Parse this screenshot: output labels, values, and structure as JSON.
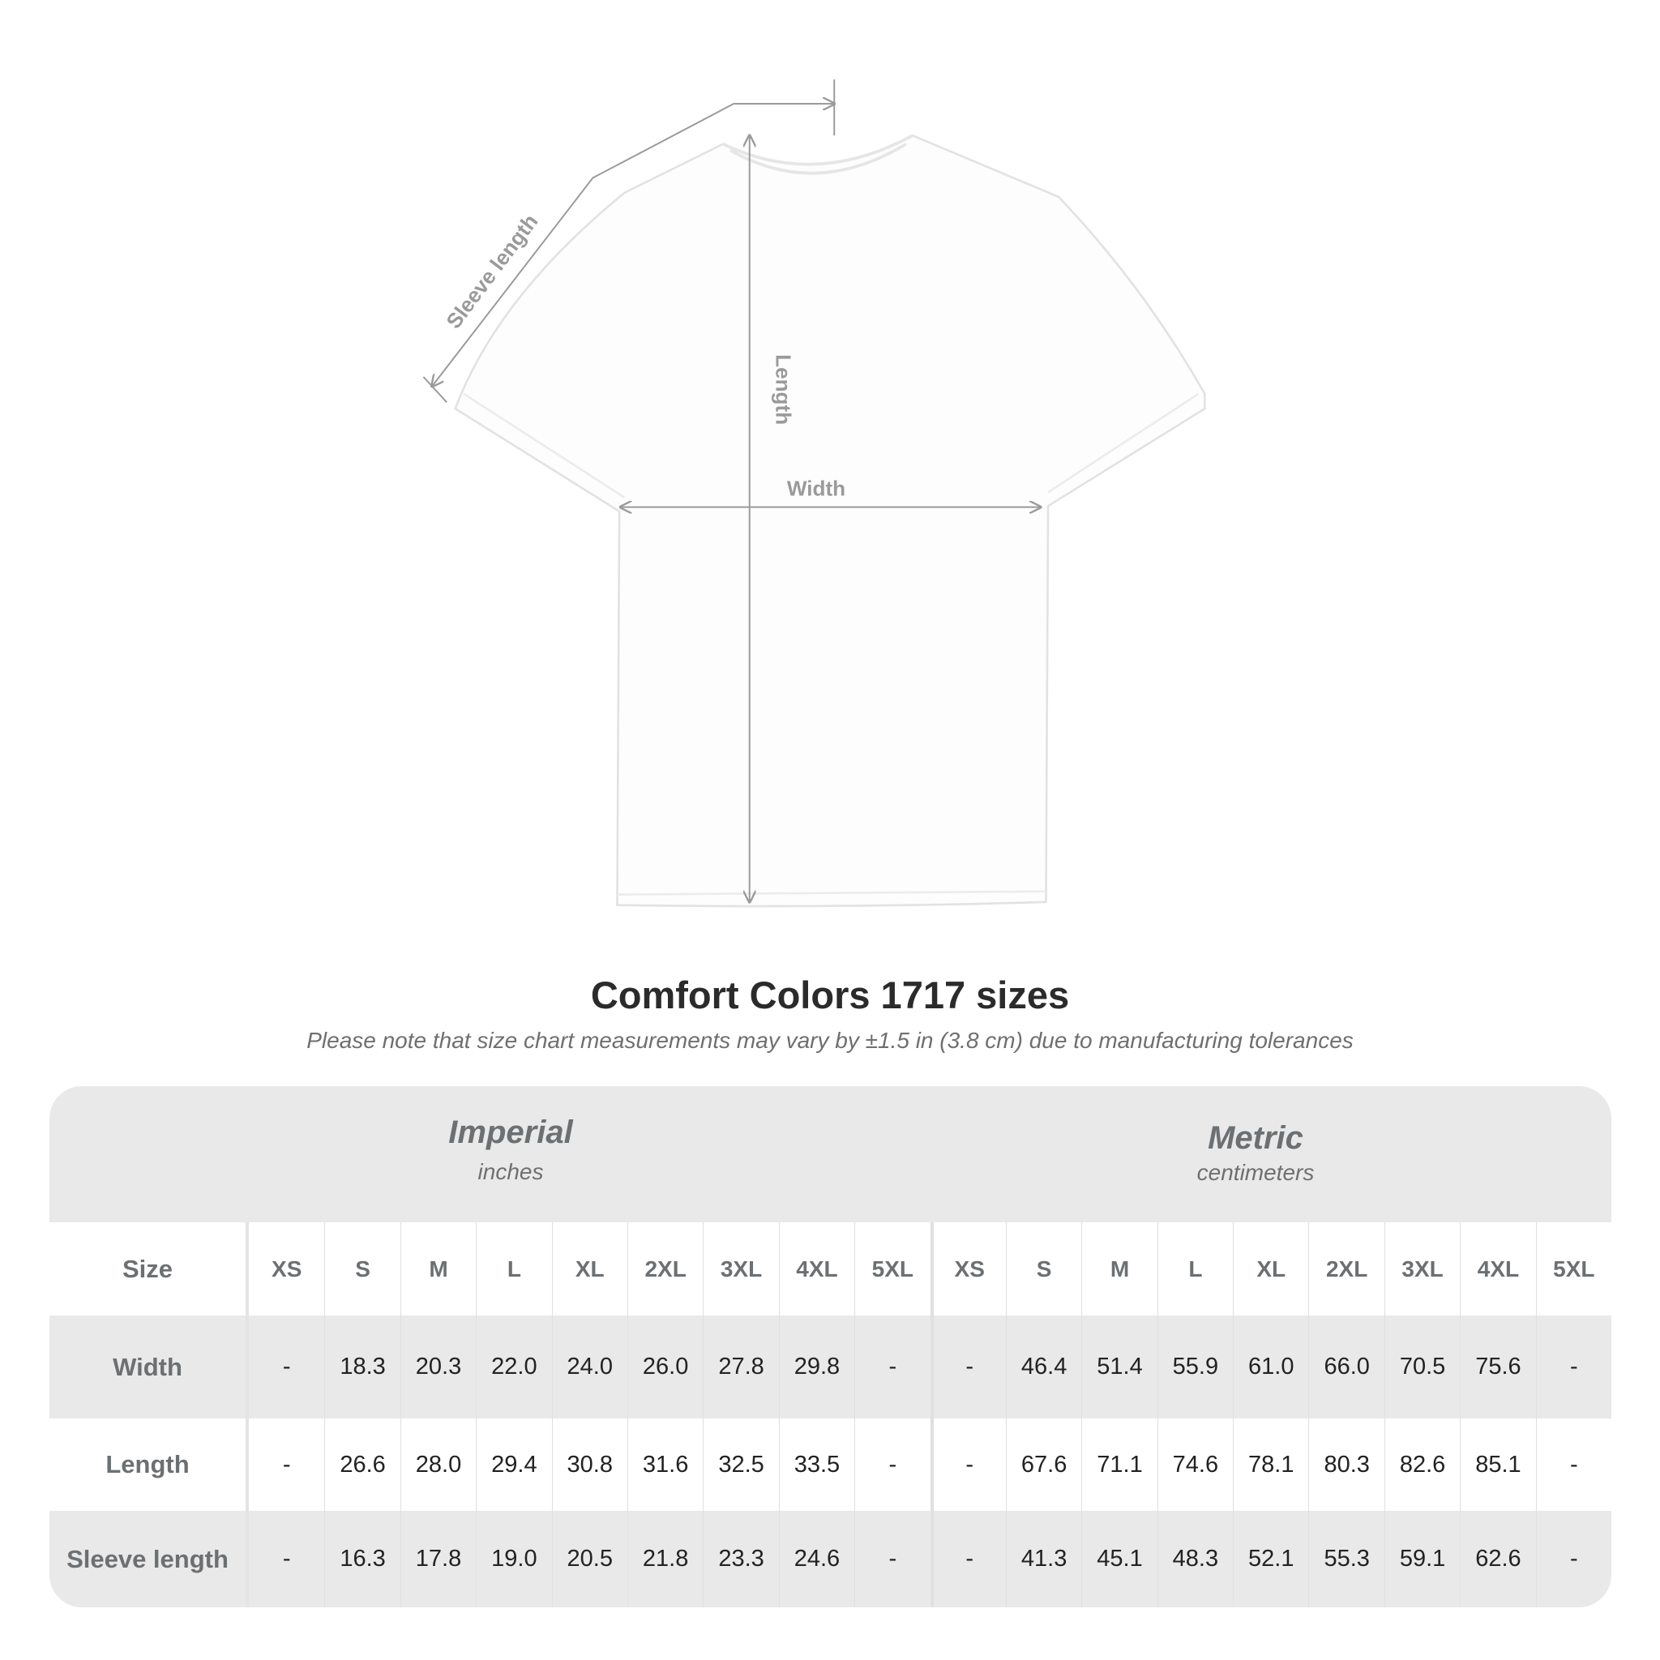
{
  "diagram": {
    "sleeve_label": "Sleeve length",
    "length_label": "Length",
    "width_label": "Width"
  },
  "title": "Comfort Colors 1717 sizes",
  "subtitle": "Please note that size chart measurements may vary by ±1.5 in (3.8 cm) due to manufacturing tolerances",
  "table": {
    "imperial": {
      "name": "Imperial",
      "unit": "inches"
    },
    "metric": {
      "name": "Metric",
      "unit": "centimeters"
    },
    "size_label": "Size",
    "sizes": [
      "XS",
      "S",
      "M",
      "L",
      "XL",
      "2XL",
      "3XL",
      "4XL",
      "5XL"
    ],
    "rows": [
      {
        "label": "Width",
        "imperial": [
          "-",
          "18.3",
          "20.3",
          "22.0",
          "24.0",
          "26.0",
          "27.8",
          "29.8",
          "-"
        ],
        "metric": [
          "-",
          "46.4",
          "51.4",
          "55.9",
          "61.0",
          "66.0",
          "70.5",
          "75.6",
          "-"
        ]
      },
      {
        "label": "Length",
        "imperial": [
          "-",
          "26.6",
          "28.0",
          "29.4",
          "30.8",
          "31.6",
          "32.5",
          "33.5",
          "-"
        ],
        "metric": [
          "-",
          "67.6",
          "71.1",
          "74.6",
          "78.1",
          "80.3",
          "82.6",
          "85.1",
          "-"
        ]
      },
      {
        "label": "Sleeve length",
        "imperial": [
          "-",
          "16.3",
          "17.8",
          "19.0",
          "20.5",
          "21.8",
          "23.3",
          "24.6",
          "-"
        ],
        "metric": [
          "-",
          "41.3",
          "45.1",
          "48.3",
          "52.1",
          "55.3",
          "59.1",
          "62.6",
          "-"
        ]
      }
    ]
  },
  "colors": {
    "band": "#e9e9e9",
    "label_text": "#6c7072",
    "value_text": "#222222",
    "measure_line": "#9a9a9a"
  }
}
